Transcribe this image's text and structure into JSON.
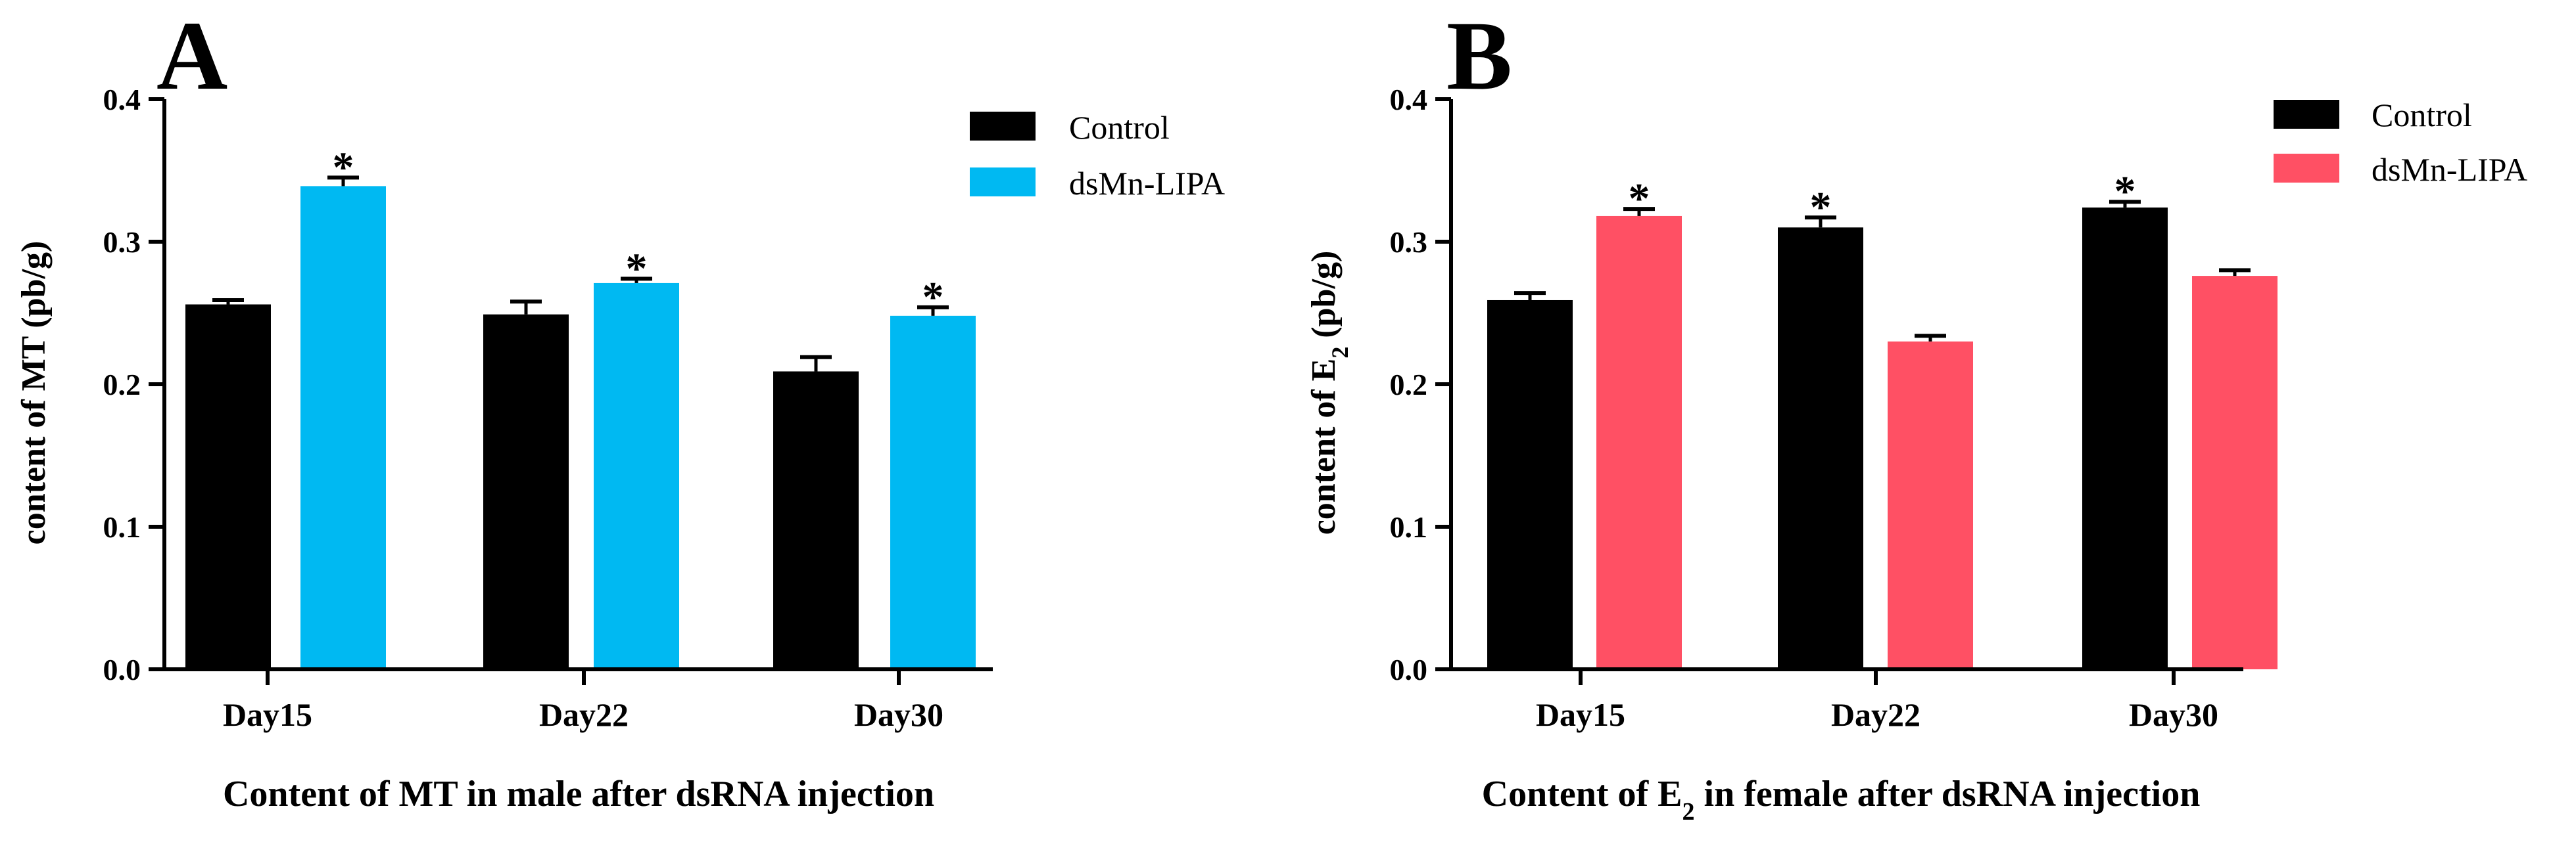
{
  "chart_data": [
    {
      "panel": "A",
      "type": "bar",
      "categories": [
        "Day15",
        "Day22",
        "Day30"
      ],
      "series": [
        {
          "name": "Control",
          "color": "#000000",
          "values": [
            0.256,
            0.249,
            0.209
          ],
          "errors": [
            0.003,
            0.009,
            0.01
          ],
          "significant": [
            false,
            false,
            false
          ]
        },
        {
          "name": "dsMn-LIPA",
          "color": "#00b9f2",
          "values": [
            0.339,
            0.271,
            0.248
          ],
          "errors": [
            0.006,
            0.003,
            0.006
          ],
          "significant": [
            true,
            true,
            true
          ]
        }
      ],
      "ylabel_pre": "content of MT (pb/g)",
      "ylabel_sub": "",
      "ylabel_post": "",
      "xlabel_pre": "Content of MT in male after dsRNA injection",
      "xlabel_sub": "",
      "xlabel_post": "",
      "ylim": [
        0,
        0.4
      ],
      "yticks": [
        "0.0",
        "0.1",
        "0.2",
        "0.3",
        "0.4"
      ],
      "legend_position": "top-right",
      "significance_mark": "*"
    },
    {
      "panel": "B",
      "type": "bar",
      "categories": [
        "Day15",
        "Day22",
        "Day30"
      ],
      "series": [
        {
          "name": "Control",
          "color": "#000000",
          "values": [
            0.259,
            0.31,
            0.324
          ],
          "errors": [
            0.005,
            0.007,
            0.004
          ],
          "significant": [
            false,
            true,
            true
          ]
        },
        {
          "name": "dsMn-LIPA",
          "color": "#ff5064",
          "values": [
            0.318,
            0.23,
            0.276
          ],
          "errors": [
            0.005,
            0.004,
            0.004
          ],
          "significant": [
            true,
            false,
            false
          ]
        }
      ],
      "ylabel_pre": "content of E",
      "ylabel_sub": "2",
      "ylabel_post": " (pb/g)",
      "xlabel_pre": "Content of E",
      "xlabel_sub": "2",
      "xlabel_post": " in female after dsRNA injection",
      "ylim": [
        0,
        0.4
      ],
      "yticks": [
        "0.0",
        "0.1",
        "0.2",
        "0.3",
        "0.4"
      ],
      "legend_position": "top-right",
      "significance_mark": "*"
    }
  ]
}
